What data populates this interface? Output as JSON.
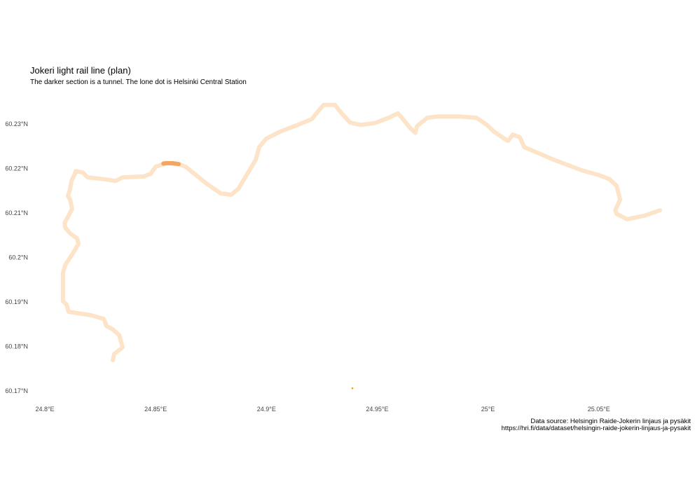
{
  "chart_data": {
    "type": "line",
    "title": "Jokeri light rail line (plan)",
    "subtitle": "The darker section is a tunnel. The lone dot is Helsinki Central Station",
    "caption": [
      "Data source: Helsingin Raide-Jokerin linjaus ja pysäkit",
      "https://hri.fi/data/dataset/helsingin-raide-jokerin-linjaus-ja-pysakit"
    ],
    "xlabel": "",
    "ylabel": "",
    "xlim": [
      24.7997,
      25.0845
    ],
    "ylim": [
      60.1686,
      60.2362
    ],
    "x_ticks": [
      {
        "value": 24.8,
        "label": "24.8°E"
      },
      {
        "value": 24.85,
        "label": "24.85°E"
      },
      {
        "value": 24.9,
        "label": "24.9°E"
      },
      {
        "value": 24.95,
        "label": "24.95°E"
      },
      {
        "value": 25.0,
        "label": "25°E"
      },
      {
        "value": 25.05,
        "label": "25.05°E"
      }
    ],
    "y_ticks": [
      {
        "value": 60.23,
        "label": "60.23°N"
      },
      {
        "value": 60.22,
        "label": "60.22°N"
      },
      {
        "value": 60.21,
        "label": "60.21°N"
      },
      {
        "value": 60.2,
        "label": "60.2°N"
      },
      {
        "value": 60.19,
        "label": "60.19°N"
      },
      {
        "value": 60.18,
        "label": "60.18°N"
      },
      {
        "value": 60.17,
        "label": "60.17°N"
      }
    ],
    "grid": false,
    "series": [
      {
        "name": "line",
        "color": "#fde3c8",
        "points": [
          [
            24.8307,
            60.1769
          ],
          [
            24.8313,
            60.1783
          ],
          [
            24.8351,
            60.1798
          ],
          [
            24.8335,
            60.1826
          ],
          [
            24.8304,
            60.1839
          ],
          [
            24.8278,
            60.1846
          ],
          [
            24.8266,
            60.1862
          ],
          [
            24.8209,
            60.187
          ],
          [
            24.8107,
            60.1878
          ],
          [
            24.8098,
            60.1894
          ],
          [
            24.8082,
            60.1902
          ],
          [
            24.8082,
            60.1965
          ],
          [
            24.8092,
            60.1983
          ],
          [
            24.813,
            60.2012
          ],
          [
            24.8152,
            60.2031
          ],
          [
            24.8145,
            60.2043
          ],
          [
            24.8114,
            60.2054
          ],
          [
            24.8092,
            60.2067
          ],
          [
            24.8089,
            60.2078
          ],
          [
            24.8104,
            60.2091
          ],
          [
            24.8123,
            60.2109
          ],
          [
            24.8114,
            60.213
          ],
          [
            24.8104,
            60.2138
          ],
          [
            24.8114,
            60.2154
          ],
          [
            24.812,
            60.2172
          ],
          [
            24.8136,
            60.2188
          ],
          [
            24.8139,
            60.2194
          ],
          [
            24.8171,
            60.2191
          ],
          [
            24.8193,
            60.218
          ],
          [
            24.8266,
            60.2176
          ],
          [
            24.8319,
            60.2172
          ],
          [
            24.8351,
            60.218
          ],
          [
            24.8446,
            60.2182
          ],
          [
            24.8477,
            60.2188
          ],
          [
            24.85,
            60.2204
          ],
          [
            24.8547,
            60.2212
          ],
          [
            24.8604,
            60.221
          ],
          [
            24.8635,
            60.2204
          ],
          [
            24.873,
            60.2166
          ],
          [
            24.8794,
            60.2144
          ],
          [
            24.8841,
            60.2141
          ],
          [
            24.8873,
            60.2154
          ],
          [
            24.892,
            60.2193
          ],
          [
            24.8952,
            60.222
          ],
          [
            24.8967,
            60.2248
          ],
          [
            24.8999,
            60.2267
          ],
          [
            24.9062,
            60.2283
          ],
          [
            24.9141,
            60.2298
          ],
          [
            24.9205,
            60.2311
          ],
          [
            24.9236,
            60.233
          ],
          [
            24.9258,
            60.2343
          ],
          [
            24.9309,
            60.2343
          ],
          [
            24.934,
            60.2324
          ],
          [
            24.9378,
            60.2303
          ],
          [
            24.9426,
            60.2298
          ],
          [
            24.9489,
            60.2302
          ],
          [
            24.9552,
            60.2314
          ],
          [
            24.9593,
            60.2324
          ],
          [
            24.9616,
            60.2311
          ],
          [
            24.9647,
            60.2292
          ],
          [
            24.9672,
            60.228
          ],
          [
            24.9679,
            60.2295
          ],
          [
            24.9726,
            60.2314
          ],
          [
            24.9774,
            60.2317
          ],
          [
            24.9868,
            60.2317
          ],
          [
            24.9948,
            60.2314
          ],
          [
            24.9995,
            60.2298
          ],
          [
            25.0027,
            60.2283
          ],
          [
            25.0074,
            60.2267
          ],
          [
            25.009,
            60.2262
          ],
          [
            25.0112,
            60.2276
          ],
          [
            25.0144,
            60.227
          ],
          [
            25.0163,
            60.2248
          ],
          [
            25.0201,
            60.224
          ],
          [
            25.0295,
            60.222
          ],
          [
            25.0422,
            60.2196
          ],
          [
            25.0501,
            60.2185
          ],
          [
            25.0548,
            60.2176
          ],
          [
            25.058,
            60.2161
          ],
          [
            25.0596,
            60.213
          ],
          [
            25.0574,
            60.2106
          ],
          [
            25.058,
            60.2098
          ],
          [
            25.0627,
            60.2086
          ],
          [
            25.0706,
            60.2094
          ],
          [
            25.0776,
            60.2106
          ]
        ]
      },
      {
        "name": "tunnel",
        "color": "#f5a562",
        "points": [
          [
            24.8535,
            60.2211
          ],
          [
            24.8547,
            60.2212
          ],
          [
            24.8575,
            60.2212
          ],
          [
            24.8604,
            60.221
          ]
        ]
      }
    ],
    "points": [
      {
        "name": "Helsinki Central Station",
        "lon": 24.9388,
        "lat": 60.1706,
        "color": "#ff9900"
      }
    ]
  }
}
